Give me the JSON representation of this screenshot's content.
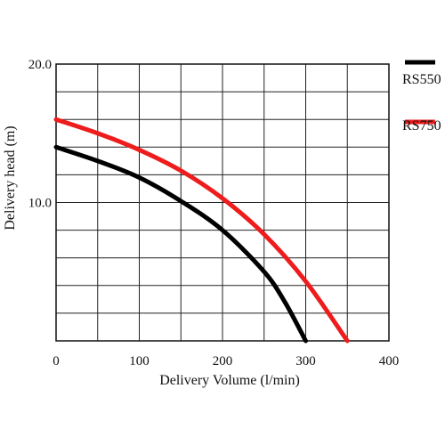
{
  "chart_data": {
    "type": "line",
    "xlabel": "Delivery Volume (l/min)",
    "ylabel": "Delivery head (m)",
    "xlim": [
      0,
      400
    ],
    "ylim": [
      0,
      20
    ],
    "x_ticks": [
      0,
      100,
      200,
      300,
      400
    ],
    "y_ticks": [
      10.0,
      20.0
    ],
    "x_tick_labels": [
      "0",
      "100",
      "200",
      "300",
      "400"
    ],
    "y_tick_labels": [
      "10.0",
      "20.0"
    ],
    "x_grid_step": 50,
    "y_grid_step": 2,
    "grid": true,
    "legend_position": "right",
    "series": [
      {
        "name": "RS550",
        "color": "#000000",
        "x": [
          0,
          50,
          100,
          150,
          200,
          250,
          275,
          300
        ],
        "y": [
          14.0,
          13.0,
          11.8,
          10.1,
          8.0,
          5.0,
          2.8,
          0.0
        ]
      },
      {
        "name": "RS750",
        "color": "#ee1c1c",
        "x": [
          0,
          50,
          100,
          150,
          200,
          250,
          300,
          350
        ],
        "y": [
          16.0,
          15.0,
          13.8,
          12.3,
          10.3,
          7.7,
          4.3,
          0.0
        ]
      }
    ]
  }
}
